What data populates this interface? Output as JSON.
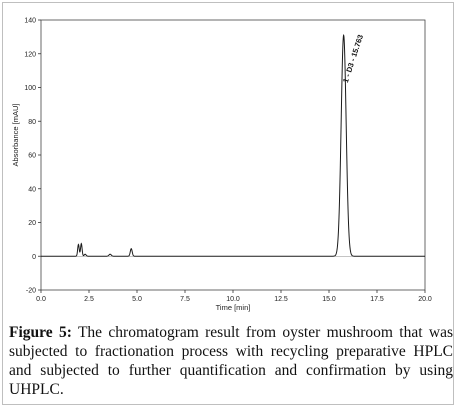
{
  "chart_data": {
    "type": "line",
    "xlabel": "Time [min]",
    "ylabel": "Absorbance [mAU]",
    "xlim": [
      0.0,
      20.0
    ],
    "ylim": [
      -20,
      140
    ],
    "x_ticks": [
      "0.0",
      "2.5",
      "5.0",
      "7.5",
      "10.0",
      "12.5",
      "15.0",
      "17.5",
      "20.0"
    ],
    "x_tick_values": [
      0,
      2.5,
      5,
      7.5,
      10,
      12.5,
      15,
      17.5,
      20
    ],
    "y_ticks": [
      "-20",
      "0",
      "20",
      "40",
      "60",
      "80",
      "100",
      "120",
      "140"
    ],
    "y_tick_values": [
      -20,
      0,
      20,
      40,
      60,
      80,
      100,
      120,
      140
    ],
    "grid": false,
    "baseline": 0,
    "series": [
      {
        "peaks": [
          {
            "rt": 1.95,
            "height": 7,
            "width": 0.04
          },
          {
            "rt": 2.1,
            "height": 7.5,
            "width": 0.04
          },
          {
            "rt": 2.3,
            "height": 1.2,
            "width": 0.05
          },
          {
            "rt": 3.6,
            "height": 1.2,
            "width": 0.06
          },
          {
            "rt": 4.7,
            "height": 4.5,
            "width": 0.05
          },
          {
            "rt": 15.763,
            "height": 131,
            "width": 0.13
          }
        ]
      }
    ],
    "annotations": [
      {
        "text": "1 - D3 - 15.763",
        "x": 15.763,
        "y": 131
      }
    ]
  },
  "caption": {
    "label": "Figure 5:",
    "text": " The chromatogram result from oyster mushroom that was subjected to fractionation process with recycling preparative HPLC and subjected to further quantification and confirmation by using UHPLC."
  }
}
